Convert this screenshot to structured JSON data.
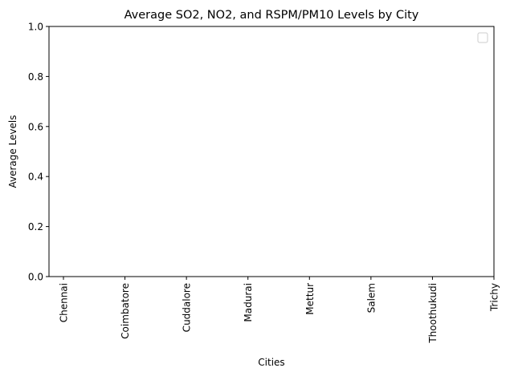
{
  "chart_data": {
    "type": "bar",
    "title": "Average SO2, NO2, and RSPM/PM10 Levels by City",
    "xlabel": "Cities",
    "ylabel": "Average Levels",
    "categories": [
      "Chennai",
      "Coimbatore",
      "Cuddalore",
      "Madurai",
      "Mettur",
      "Salem",
      "Thoothukudi",
      "Trichy"
    ],
    "series": [],
    "ylim": [
      0,
      1
    ],
    "yticks": [
      "0.0",
      "0.2",
      "0.4",
      "0.6",
      "0.8",
      "1.0"
    ],
    "grid": false,
    "legend": {
      "placement": "top-right",
      "entries": []
    }
  }
}
